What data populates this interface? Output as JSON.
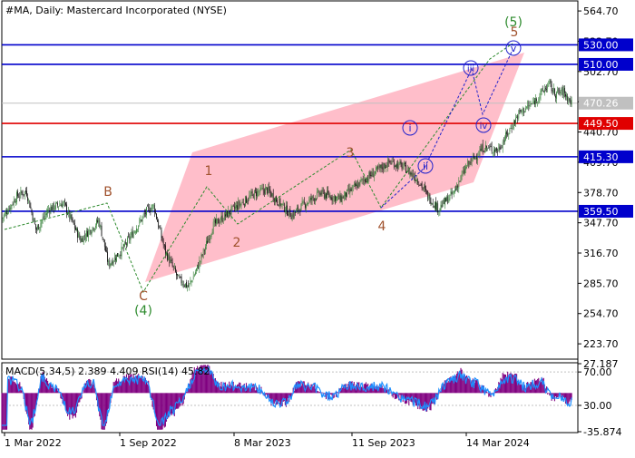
{
  "title": "#MA, Daily:  Mastercard Incorporated (NYSE)",
  "price_ticks": [
    "564.70",
    "533.70",
    "502.70",
    "471.70",
    "440.70",
    "409.70",
    "378.70",
    "347.70",
    "316.70",
    "285.70",
    "254.70",
    "223.70"
  ],
  "date_ticks": [
    "1 Mar 2022",
    "1 Sep 2022",
    "8 Mar 2023",
    "11 Sep 2023",
    "14 Mar 2024"
  ],
  "level_lines": [
    {
      "label": "530.00",
      "value": 530.0,
      "color": "#0000cc"
    },
    {
      "label": "510.00",
      "value": 510.0,
      "color": "#0000cc"
    },
    {
      "label": "449.50",
      "value": 449.5,
      "color": "#e00000"
    },
    {
      "label": "415.30",
      "value": 415.3,
      "color": "#0000cc"
    },
    {
      "label": "359.50",
      "value": 359.5,
      "color": "#0000cc"
    }
  ],
  "current_price": {
    "label": "470.26",
    "value": 470.26
  },
  "wave_labels": [
    {
      "text": "B",
      "style": "major"
    },
    {
      "text": "C",
      "style": "major"
    },
    {
      "text": "(4)",
      "style": "green"
    },
    {
      "text": "1",
      "style": "major"
    },
    {
      "text": "2",
      "style": "major"
    },
    {
      "text": "3",
      "style": "major"
    },
    {
      "text": "4",
      "style": "major"
    },
    {
      "text": "5",
      "style": "major"
    },
    {
      "text": "(5)",
      "style": "green"
    },
    {
      "text": "i",
      "style": "circle"
    },
    {
      "text": "ii",
      "style": "circle"
    },
    {
      "text": "iii",
      "style": "circle"
    },
    {
      "text": "iv",
      "style": "circle"
    },
    {
      "text": "v",
      "style": "circle"
    }
  ],
  "indicator": {
    "label": "MACD(5,34,5) 2.389 4.409 RSI(14) 45.82",
    "ticks": [
      "27.187",
      "70.00",
      "30.00",
      "-35.874"
    ]
  },
  "colors": {
    "bull": "#2e7d32",
    "bear": "#000000",
    "channel": "#ffb3c1",
    "wave_major": "#a0522d",
    "wave_green": "#2e8b2e",
    "wave_circle": "#2222cc",
    "macd_hist": "#800080",
    "rsi": "#1e90ff",
    "current_price_line": "#c0c0c0"
  },
  "chart_data": {
    "type": "candlestick",
    "symbol": "#MA",
    "timeframe": "Daily",
    "ylim": [
      208,
      575
    ],
    "x_range": [
      "2022-01-10",
      "2024-05-01"
    ],
    "close_path": [
      {
        "date": "2022-01-10",
        "close": 352
      },
      {
        "date": "2022-02-01",
        "close": 375
      },
      {
        "date": "2022-02-15",
        "close": 380
      },
      {
        "date": "2022-03-01",
        "close": 340
      },
      {
        "date": "2022-03-20",
        "close": 362
      },
      {
        "date": "2022-04-10",
        "close": 368
      },
      {
        "date": "2022-05-05",
        "close": 330
      },
      {
        "date": "2022-06-01",
        "close": 350
      },
      {
        "date": "2022-06-15",
        "close": 305
      },
      {
        "date": "2022-07-05",
        "close": 320
      },
      {
        "date": "2022-08-10",
        "close": 360
      },
      {
        "date": "2022-08-20",
        "close": 365
      },
      {
        "date": "2022-09-05",
        "close": 320
      },
      {
        "date": "2022-09-25",
        "close": 290
      },
      {
        "date": "2022-10-10",
        "close": 282
      },
      {
        "date": "2022-10-25",
        "close": 305
      },
      {
        "date": "2022-11-15",
        "close": 345
      },
      {
        "date": "2022-12-15",
        "close": 362
      },
      {
        "date": "2023-01-15",
        "close": 378
      },
      {
        "date": "2023-02-01",
        "close": 382
      },
      {
        "date": "2023-02-20",
        "close": 368
      },
      {
        "date": "2023-03-10",
        "close": 355
      },
      {
        "date": "2023-03-25",
        "close": 365
      },
      {
        "date": "2023-04-20",
        "close": 378
      },
      {
        "date": "2023-05-20",
        "close": 372
      },
      {
        "date": "2023-06-20",
        "close": 390
      },
      {
        "date": "2023-07-31",
        "close": 410
      },
      {
        "date": "2023-08-20",
        "close": 405
      },
      {
        "date": "2023-09-10",
        "close": 392
      },
      {
        "date": "2023-09-25",
        "close": 375
      },
      {
        "date": "2023-10-10",
        "close": 362
      },
      {
        "date": "2023-11-01",
        "close": 378
      },
      {
        "date": "2023-11-20",
        "close": 405
      },
      {
        "date": "2023-12-15",
        "close": 425
      },
      {
        "date": "2024-01-05",
        "close": 422
      },
      {
        "date": "2024-01-20",
        "close": 440
      },
      {
        "date": "2024-02-05",
        "close": 460
      },
      {
        "date": "2024-02-25",
        "close": 470
      },
      {
        "date": "2024-03-20",
        "close": 490
      },
      {
        "date": "2024-03-28",
        "close": 480
      },
      {
        "date": "2024-04-10",
        "close": 482
      },
      {
        "date": "2024-04-22",
        "close": 470
      }
    ]
  }
}
